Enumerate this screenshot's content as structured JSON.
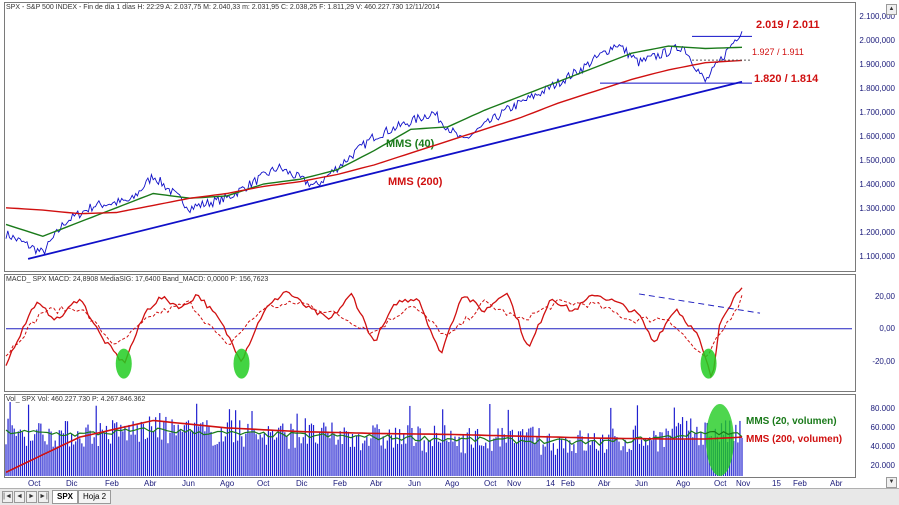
{
  "panels": {
    "price_header": "SPX - S&P 500 INDEX - Fin de día 1 días  H: 22:29  A: 2.037,75  M: 2.040,33  m: 2.031,95  C: 2.038,25  F: 1.811,29  V: 460.227.730  12/11/2014",
    "macd_header": "MACD_ SPX  MACD: 24,8908  MediaSIG: 17,6400  Band_MACD: 0,0000  P: 156,7623",
    "vol_header": "Vol_ SPX  Vol: 460.227.730  P: 4.267.846.362"
  },
  "tabs": {
    "active": "SPX",
    "second": "Hoja 2"
  },
  "nav": {
    "first": "|◄",
    "prev": "◄",
    "next": "►",
    "last": "►|"
  },
  "colors": {
    "price": "#1010c8",
    "mms40": "#1a7a1a",
    "mms200": "#d01010",
    "trend": "#1010c8",
    "macd": "#d01010",
    "signal": "#d01010",
    "highlight": "#22cc22",
    "volume": "#2020d0"
  },
  "chart_data": [
    {
      "type": "line",
      "title": "SPX - S&P 500 INDEX",
      "y_ticks": [
        "2.100,000",
        "2.000,000",
        "1.900,000",
        "1.800,000",
        "1.700,000",
        "1.600,000",
        "1.500,000",
        "1.400,000",
        "1.300,000",
        "1.200,000",
        "1.100,000"
      ],
      "ylim": [
        1045,
        2105
      ],
      "x_labels": [
        "Oct",
        "Dic",
        "Feb",
        "Abr",
        "Jun",
        "Ago",
        "Oct",
        "Dic",
        "Feb",
        "Abr",
        "Jun",
        "Ago",
        "Oct",
        "Nov",
        "14",
        "Feb",
        "Abr",
        "Jun",
        "Ago",
        "Oct",
        "Nov",
        "15",
        "Feb",
        "Abr"
      ],
      "series": [
        {
          "name": "SPX",
          "x": [
            0,
            5,
            8,
            12,
            17,
            20,
            25,
            30,
            37,
            42,
            50,
            58,
            62,
            68,
            73,
            78,
            83,
            86,
            92,
            95,
            100
          ],
          "values": [
            1180,
            1100,
            1230,
            1300,
            1320,
            1425,
            1290,
            1330,
            1460,
            1380,
            1590,
            1690,
            1570,
            1700,
            1780,
            1870,
            1980,
            1900,
            1970,
            1820,
            2038
          ]
        },
        {
          "name": "MMS (40)",
          "x": [
            0,
            5,
            10,
            15,
            20,
            25,
            30,
            35,
            40,
            45,
            50,
            55,
            60,
            65,
            70,
            75,
            80,
            85,
            90,
            95,
            100
          ],
          "values": [
            1220,
            1170,
            1230,
            1290,
            1350,
            1330,
            1340,
            1390,
            1410,
            1450,
            1530,
            1620,
            1630,
            1700,
            1760,
            1820,
            1880,
            1940,
            1970,
            1960,
            1965
          ]
        },
        {
          "name": "MMS (200)",
          "x": [
            0,
            5,
            10,
            15,
            20,
            25,
            30,
            35,
            40,
            45,
            50,
            55,
            60,
            65,
            70,
            75,
            80,
            85,
            90,
            95,
            100
          ],
          "values": [
            1290,
            1280,
            1265,
            1270,
            1300,
            1330,
            1350,
            1380,
            1400,
            1430,
            1470,
            1520,
            1570,
            1620,
            1670,
            1730,
            1780,
            1830,
            1870,
            1900,
            1910
          ]
        },
        {
          "name": "Trend line",
          "x": [
            3,
            100
          ],
          "values": [
            1075,
            1820
          ]
        }
      ],
      "annotations": [
        {
          "text": "MMS (40)",
          "color": "#1a7a1a"
        },
        {
          "text": "MMS (200)",
          "color": "#d01010"
        },
        {
          "text": "2.019 / 2.011",
          "color": "#d01010"
        },
        {
          "text": "1.927 / 1.911",
          "color": "#d01010"
        },
        {
          "text": "1.820 / 1.814",
          "color": "#d01010"
        }
      ]
    },
    {
      "type": "line",
      "title": "MACD_ SPX",
      "y_ticks": [
        "20,00",
        "0,00",
        "-20,00"
      ],
      "ylim": [
        -34,
        28
      ],
      "series": [
        {
          "name": "MACD",
          "x": [
            0,
            4,
            7,
            10,
            13,
            16,
            19,
            21,
            24,
            26,
            29,
            32,
            35,
            38,
            41,
            44,
            47,
            50,
            53,
            56,
            59,
            62,
            65,
            68,
            71,
            74,
            77,
            80,
            83,
            86,
            88,
            91,
            94,
            96,
            97,
            100
          ],
          "values": [
            -20,
            15,
            5,
            18,
            -5,
            -20,
            10,
            18,
            12,
            20,
            5,
            -18,
            10,
            22,
            12,
            5,
            20,
            -8,
            15,
            18,
            -15,
            20,
            10,
            22,
            -12,
            18,
            10,
            20,
            15,
            8,
            -8,
            12,
            -4,
            -30,
            5,
            25
          ]
        },
        {
          "name": "MediaSIG",
          "x": [
            0,
            5,
            10,
            15,
            20,
            25,
            30,
            35,
            40,
            45,
            50,
            55,
            60,
            65,
            70,
            75,
            80,
            85,
            90,
            95,
            100
          ],
          "values": [
            -15,
            10,
            12,
            -10,
            8,
            15,
            -10,
            12,
            15,
            8,
            -2,
            14,
            -5,
            15,
            5,
            15,
            14,
            5,
            6,
            -18,
            18
          ]
        }
      ],
      "zero_line": 0
    },
    {
      "type": "bar",
      "title": "Vol_ SPX",
      "y_ticks": [
        "80.000",
        "60.000",
        "40.000",
        "20.000"
      ],
      "ylim": [
        10,
        90
      ],
      "series": [
        {
          "name": "MMS (20, volumen)",
          "x": [
            0,
            10,
            20,
            30,
            40,
            50,
            60,
            70,
            80,
            90,
            95,
            100
          ],
          "values": [
            58,
            55,
            60,
            56,
            54,
            52,
            50,
            48,
            46,
            52,
            58,
            55
          ]
        },
        {
          "name": "MMS (200, volumen)",
          "x": [
            0,
            10,
            20,
            30,
            40,
            50,
            60,
            70,
            80,
            90,
            95,
            100
          ],
          "values": [
            14,
            52,
            70,
            62,
            58,
            56,
            55,
            53,
            51,
            50,
            50,
            52
          ]
        }
      ],
      "annotations": [
        {
          "text": "MMS (20, volumen)",
          "color": "#1a7a1a"
        },
        {
          "text": "MMS (200, volumen)",
          "color": "#d01010"
        }
      ]
    }
  ]
}
